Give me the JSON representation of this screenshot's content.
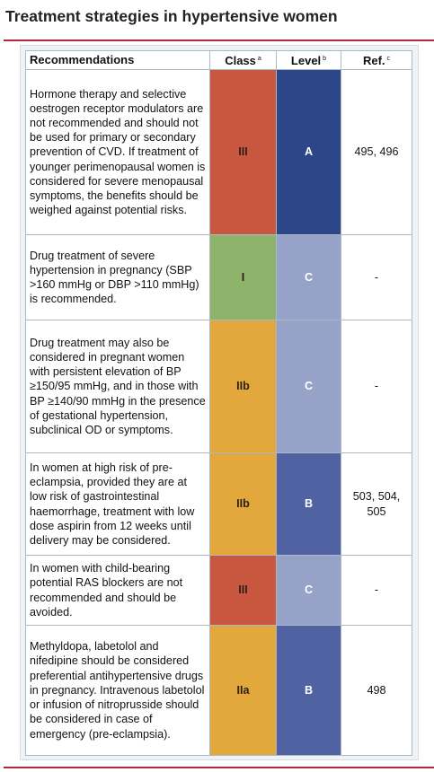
{
  "header": {
    "title": "Treatment strategies in hypertensive women"
  },
  "table": {
    "columns": [
      {
        "text": "Recommendations"
      },
      {
        "text": "Class",
        "note": "a"
      },
      {
        "text": "Level",
        "note": "b"
      },
      {
        "text": "Ref.",
        "note": "c"
      }
    ],
    "rows": [
      {
        "recommendation": "Hormone therapy and selective oestrogen receptor modulators are not recommended and should not be used for primary or secondary prevention of CVD. If treatment of younger perimenopausal women is considered for severe menopausal symptoms, the benefits should be weighed against potential risks.",
        "class": "III",
        "level": "A",
        "ref": "495, 496",
        "class_color": "#c9573f",
        "level_color": "#2c4688"
      },
      {
        "recommendation": "Drug treatment of severe hypertension in pregnancy (SBP >160 mmHg or DBP >110 mmHg) is recommended.",
        "class": "I",
        "level": "C",
        "ref": "-",
        "class_color": "#8db46a",
        "level_color": "#97a2c9"
      },
      {
        "recommendation": "Drug treatment may also be considered in pregnant women with persistent elevation of BP ≥150/95 mmHg, and in those with BP ≥140/90 mmHg in the presence of gestational hypertension, subclinical OD or symptoms.",
        "class": "IIb",
        "level": "C",
        "ref": "-",
        "class_color": "#e2a83c",
        "level_color": "#97a2c9"
      },
      {
        "recommendation": "In women at high risk of pre-eclampsia, provided they are at low risk of gastrointestinal haemorrhage, treatment with low dose aspirin from 12 weeks until delivery may be considered.",
        "class": "IIb",
        "level": "B",
        "ref": "503, 504, 505",
        "class_color": "#e2a83c",
        "level_color": "#5062a1"
      },
      {
        "recommendation": "In women with child-bearing potential RAS blockers are not recommended and should be avoided.",
        "class": "III",
        "level": "C",
        "ref": "-",
        "class_color": "#c9573f",
        "level_color": "#97a2c9"
      },
      {
        "recommendation": "Methyldopa, labetolol and nifedipine should be considered preferential antihypertensive drugs in pregnancy. Intravenous labetolol or infusion of nitroprusside should be considered in case of emergency (pre-eclampsia).",
        "class": "IIa",
        "level": "B",
        "ref": "498",
        "class_color": "#e2a83c",
        "level_color": "#5062a1"
      }
    ]
  }
}
